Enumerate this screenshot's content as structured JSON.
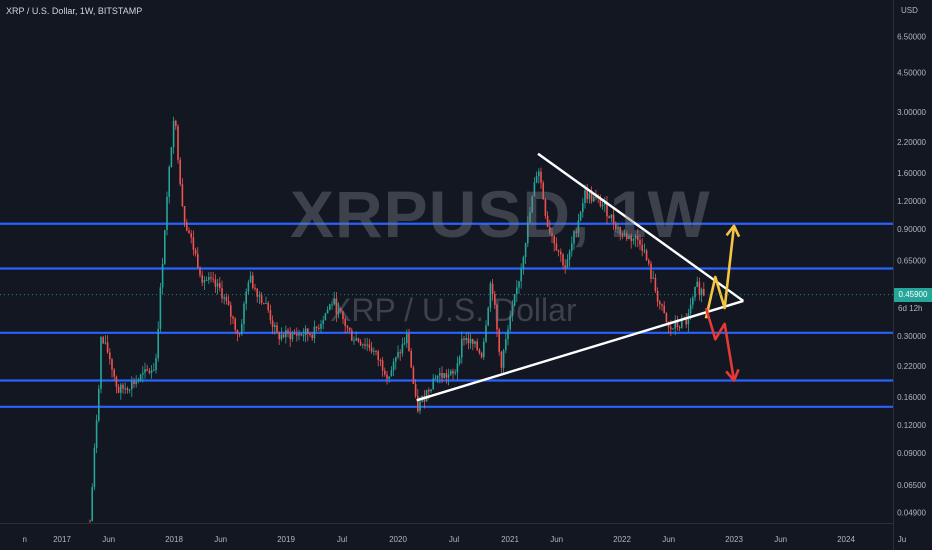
{
  "header": {
    "symbol_line": "XRP / U.S. Dollar, 1W, BITSTAMP"
  },
  "watermark": {
    "ticker": "XRPUSD, 1W",
    "name": "XRP / U.S. Dollar"
  },
  "price_axis": {
    "unit": "USD",
    "current_price": "0.45900",
    "countdown": "6d 12h"
  },
  "colors": {
    "background": "#131722",
    "up_candle": "#26a69a",
    "down_candle": "#ef5350",
    "support_lines": "#2962ff",
    "trendlines": "#ffffff",
    "bull_projection": "#f5c542",
    "bear_projection": "#e53935",
    "price_tag": "#26a69a",
    "axis_text": "#b2b5be"
  },
  "chart_data": {
    "type": "candlestick",
    "title": "XRP / U.S. Dollar, 1W, BITSTAMP",
    "y_scale": "log",
    "y_axis_ticks": [
      "6.50000",
      "4.50000",
      "3.00000",
      "2.20000",
      "1.60000",
      "1.20000",
      "0.90000",
      "0.65000",
      "0.45900",
      "0.30000",
      "0.22000",
      "0.16000",
      "0.12000",
      "0.09000",
      "0.06500",
      "0.04900"
    ],
    "x_axis_ticks": [
      "n",
      "2017",
      "Jun",
      "2018",
      "Jun",
      "2019",
      "Jul",
      "2020",
      "Jul",
      "2021",
      "Jun",
      "2022",
      "Jun",
      "2023",
      "Jun",
      "2024",
      "Ju"
    ],
    "ylim": [
      0.045,
      8.0
    ],
    "horizontal_levels": [
      0.95,
      0.6,
      0.31,
      0.19,
      0.145
    ],
    "price_path": [
      [
        "2017-04",
        0.045
      ],
      [
        "2017-05",
        0.2
      ],
      [
        "2017-05",
        0.3
      ],
      [
        "2017-06",
        0.25
      ],
      [
        "2017-07",
        0.17
      ],
      [
        "2017-09",
        0.19
      ],
      [
        "2017-11",
        0.22
      ],
      [
        "2017-12",
        0.9
      ],
      [
        "2018-01",
        3.05
      ],
      [
        "2018-02",
        1.05
      ],
      [
        "2018-04",
        0.55
      ],
      [
        "2018-06",
        0.48
      ],
      [
        "2018-08",
        0.3
      ],
      [
        "2018-09",
        0.55
      ],
      [
        "2018-11",
        0.4
      ],
      [
        "2018-12",
        0.3
      ],
      [
        "2019-04",
        0.31
      ],
      [
        "2019-06",
        0.43
      ],
      [
        "2019-08",
        0.3
      ],
      [
        "2019-10",
        0.27
      ],
      [
        "2019-12",
        0.2
      ],
      [
        "2020-02",
        0.3
      ],
      [
        "2020-03",
        0.14
      ],
      [
        "2020-05",
        0.2
      ],
      [
        "2020-07",
        0.2
      ],
      [
        "2020-08",
        0.3
      ],
      [
        "2020-10",
        0.25
      ],
      [
        "2020-11",
        0.55
      ],
      [
        "2020-12",
        0.22
      ],
      [
        "2021-02",
        0.55
      ],
      [
        "2021-04",
        1.75
      ],
      [
        "2021-05",
        0.95
      ],
      [
        "2021-07",
        0.6
      ],
      [
        "2021-09",
        1.3
      ],
      [
        "2021-11",
        1.15
      ],
      [
        "2022-01",
        0.85
      ],
      [
        "2022-03",
        0.8
      ],
      [
        "2022-05",
        0.42
      ],
      [
        "2022-06",
        0.32
      ],
      [
        "2022-08",
        0.35
      ],
      [
        "2022-09",
        0.5
      ],
      [
        "2022-10",
        0.459
      ]
    ],
    "trendlines": [
      {
        "from": [
          "2021-04",
          1.95
        ],
        "to": [
          "2023-02",
          0.43
        ]
      },
      {
        "from": [
          "2020-03",
          0.155
        ],
        "to": [
          "2023-02",
          0.43
        ]
      }
    ],
    "projections": [
      {
        "name": "",
        "path": [
          [
            "2022-10",
            0.36
          ],
          [
            "2022-11",
            0.55
          ],
          [
            "2022-12",
            0.4
          ],
          [
            "2023-01",
            0.93
          ]
        ]
      },
      {
        "name": "",
        "path": [
          [
            "2022-10",
            0.4
          ],
          [
            "2022-11",
            0.29
          ],
          [
            "2022-12",
            0.34
          ],
          [
            "2023-01",
            0.19
          ]
        ]
      }
    ],
    "last_price": 0.459
  }
}
